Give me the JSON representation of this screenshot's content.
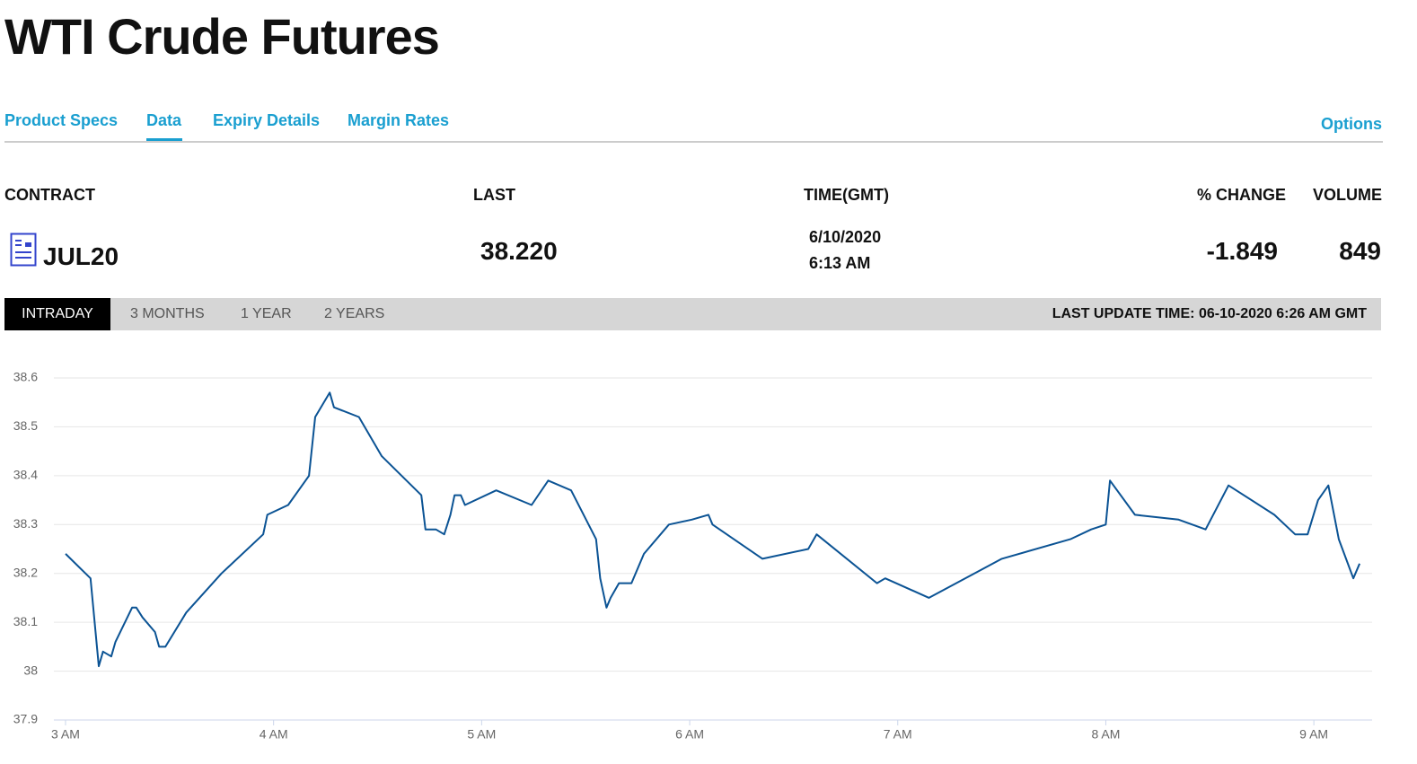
{
  "header": {
    "title": "WTI Crude Futures"
  },
  "tabs": [
    "Product Specs",
    "Data",
    "Expiry Details",
    "Margin Rates"
  ],
  "options": "Options",
  "contract_table": {
    "headers": [
      "CONTRACT",
      "LAST",
      "TIME(GMT)",
      "% CHANGE",
      "VOLUME"
    ],
    "row": {
      "contract": "JUL20",
      "last": "38.220",
      "date": "6/10/2020",
      "time": "6:13 AM",
      "change": "-1.849",
      "volume": "849"
    }
  },
  "range_tabs": [
    "INTRADAY",
    "3 MONTHS",
    "1 YEAR",
    "2 YEARS"
  ],
  "last_update": "LAST UPDATE TIME: 06-10-2020 6:26 AM GMT",
  "chart_data": {
    "type": "line",
    "color": "#0b5394",
    "grid": true,
    "x": [
      3.0,
      3.12,
      3.16,
      3.18,
      3.22,
      3.24,
      3.32,
      3.34,
      3.37,
      3.43,
      3.45,
      3.48,
      3.58,
      3.75,
      3.95,
      3.97,
      4.07,
      4.17,
      4.2,
      4.27,
      4.29,
      4.41,
      4.52,
      4.71,
      4.73,
      4.78,
      4.82,
      4.85,
      4.87,
      4.9,
      4.92,
      5.07,
      5.24,
      5.32,
      5.43,
      5.55,
      5.57,
      5.6,
      5.62,
      5.66,
      5.72,
      5.78,
      5.9,
      6.01,
      6.09,
      6.11,
      6.35,
      6.57,
      6.61,
      6.9,
      6.94,
      7.15,
      7.5,
      7.83,
      7.93,
      8.0,
      8.02,
      8.14,
      8.35,
      8.48,
      8.59,
      8.81,
      8.91,
      8.97,
      9.02,
      9.07,
      9.12,
      9.19,
      9.22
    ],
    "values": [
      38.24,
      38.19,
      38.01,
      38.04,
      38.03,
      38.06,
      38.13,
      38.13,
      38.11,
      38.08,
      38.05,
      38.05,
      38.12,
      38.2,
      38.28,
      38.32,
      38.34,
      38.4,
      38.52,
      38.57,
      38.54,
      38.52,
      38.44,
      38.36,
      38.29,
      38.29,
      38.28,
      38.32,
      38.36,
      38.36,
      38.34,
      38.37,
      38.34,
      38.39,
      38.37,
      38.27,
      38.19,
      38.13,
      38.15,
      38.18,
      38.18,
      38.24,
      38.3,
      38.31,
      38.32,
      38.3,
      38.23,
      38.25,
      38.28,
      38.18,
      38.19,
      38.15,
      38.23,
      38.27,
      38.29,
      38.3,
      38.39,
      38.32,
      38.31,
      38.29,
      38.38,
      38.32,
      38.28,
      38.28,
      38.35,
      38.38,
      38.27,
      38.19,
      38.22
    ],
    "xlim": [
      2.944,
      9.28
    ],
    "xticks": [
      {
        "value": 3,
        "label": "3 AM"
      },
      {
        "value": 4,
        "label": "4 AM"
      },
      {
        "value": 5,
        "label": "5 AM"
      },
      {
        "value": 6,
        "label": "6 AM"
      },
      {
        "value": 7,
        "label": "7 AM"
      },
      {
        "value": 8,
        "label": "8 AM"
      },
      {
        "value": 9,
        "label": "9 AM"
      }
    ],
    "ylim": [
      37.9,
      38.6
    ],
    "yticks": [
      37.9,
      38,
      38.1,
      38.2,
      38.3,
      38.4,
      38.5,
      38.6
    ]
  }
}
